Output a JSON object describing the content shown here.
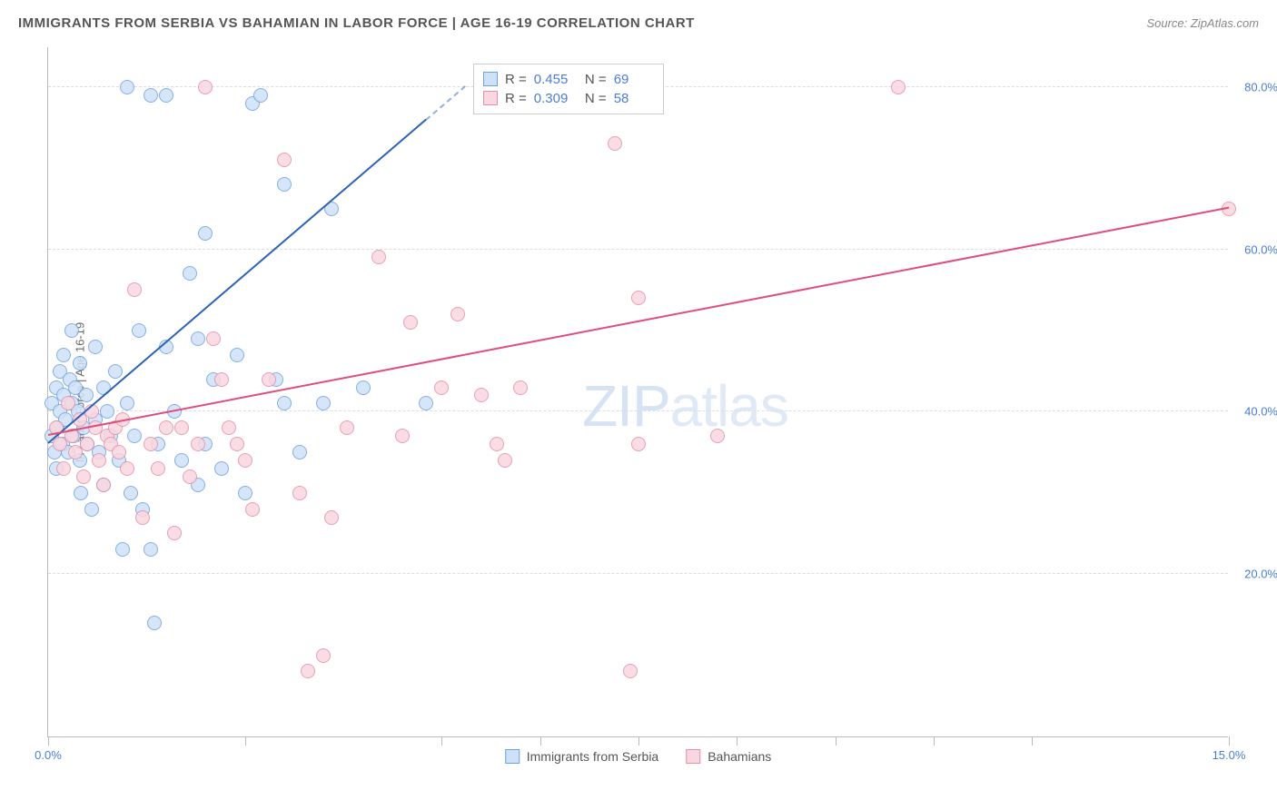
{
  "header": {
    "title": "IMMIGRANTS FROM SERBIA VS BAHAMIAN IN LABOR FORCE | AGE 16-19 CORRELATION CHART",
    "source": "Source: ZipAtlas.com"
  },
  "chart": {
    "type": "scatter",
    "ylabel": "In Labor Force | Age 16-19",
    "xlim": [
      0,
      15
    ],
    "ylim": [
      0,
      85
    ],
    "xticks": [
      0,
      2.5,
      5,
      6.25,
      7.5,
      8.75,
      10,
      11.25,
      12.5,
      15
    ],
    "xtick_labels": {
      "0": "0.0%",
      "15": "15.0%"
    },
    "ygrid": [
      20,
      40,
      60,
      80
    ],
    "ytick_labels": {
      "20": "20.0%",
      "40": "40.0%",
      "60": "60.0%",
      "80": "80.0%"
    },
    "background_color": "#ffffff",
    "grid_color": "#dddddd",
    "axis_color": "#bbbbbb",
    "tick_label_color": "#4a7dd4",
    "point_radius": 8,
    "series": [
      {
        "name": "Immigrants from Serbia",
        "fill": "#cfe1f7",
        "stroke": "#6ea3e2",
        "trend_color": "#2d62b8",
        "R": "0.455",
        "N": "69",
        "trend": {
          "x1": 0,
          "y1": 36,
          "x2": 5.3,
          "y2": 80,
          "dashed_after_x": 4.8
        },
        "points": [
          [
            0.05,
            37
          ],
          [
            0.05,
            41
          ],
          [
            0.08,
            35
          ],
          [
            0.1,
            33
          ],
          [
            0.1,
            43
          ],
          [
            0.12,
            38
          ],
          [
            0.15,
            45
          ],
          [
            0.15,
            40
          ],
          [
            0.18,
            36
          ],
          [
            0.2,
            47
          ],
          [
            0.2,
            42
          ],
          [
            0.22,
            39
          ],
          [
            0.25,
            35
          ],
          [
            0.28,
            44
          ],
          [
            0.3,
            41
          ],
          [
            0.3,
            50
          ],
          [
            0.32,
            37
          ],
          [
            0.35,
            43
          ],
          [
            0.38,
            40
          ],
          [
            0.4,
            46
          ],
          [
            0.4,
            34
          ],
          [
            0.42,
            30
          ],
          [
            0.45,
            38
          ],
          [
            0.48,
            42
          ],
          [
            0.5,
            36
          ],
          [
            0.55,
            28
          ],
          [
            0.6,
            39
          ],
          [
            0.6,
            48
          ],
          [
            0.65,
            35
          ],
          [
            0.7,
            43
          ],
          [
            0.7,
            31
          ],
          [
            0.75,
            40
          ],
          [
            0.8,
            37
          ],
          [
            0.85,
            45
          ],
          [
            0.9,
            34
          ],
          [
            0.95,
            23
          ],
          [
            1.0,
            80
          ],
          [
            1.0,
            41
          ],
          [
            1.05,
            30
          ],
          [
            1.1,
            37
          ],
          [
            1.15,
            50
          ],
          [
            1.2,
            28
          ],
          [
            1.3,
            79
          ],
          [
            1.3,
            23
          ],
          [
            1.35,
            14
          ],
          [
            1.4,
            36
          ],
          [
            1.5,
            79
          ],
          [
            1.5,
            48
          ],
          [
            1.6,
            40
          ],
          [
            1.7,
            34
          ],
          [
            1.8,
            57
          ],
          [
            1.9,
            31
          ],
          [
            1.9,
            49
          ],
          [
            2.0,
            62
          ],
          [
            2.0,
            36
          ],
          [
            2.1,
            44
          ],
          [
            2.2,
            33
          ],
          [
            2.4,
            47
          ],
          [
            2.5,
            30
          ],
          [
            2.6,
            78
          ],
          [
            2.7,
            79
          ],
          [
            2.9,
            44
          ],
          [
            3.0,
            41
          ],
          [
            3.0,
            68
          ],
          [
            3.2,
            35
          ],
          [
            3.5,
            41
          ],
          [
            3.6,
            65
          ],
          [
            4.0,
            43
          ],
          [
            4.8,
            41
          ]
        ]
      },
      {
        "name": "Bahamians",
        "fill": "#f9d7e0",
        "stroke": "#e68fa8",
        "trend_color": "#e04d7a",
        "R": "0.309",
        "N": "58",
        "trend": {
          "x1": 0,
          "y1": 37,
          "x2": 15,
          "y2": 65
        },
        "points": [
          [
            0.1,
            38
          ],
          [
            0.15,
            36
          ],
          [
            0.2,
            33
          ],
          [
            0.25,
            41
          ],
          [
            0.3,
            37
          ],
          [
            0.35,
            35
          ],
          [
            0.4,
            39
          ],
          [
            0.45,
            32
          ],
          [
            0.5,
            36
          ],
          [
            0.55,
            40
          ],
          [
            0.6,
            38
          ],
          [
            0.65,
            34
          ],
          [
            0.7,
            31
          ],
          [
            0.75,
            37
          ],
          [
            0.8,
            36
          ],
          [
            0.85,
            38
          ],
          [
            0.9,
            35
          ],
          [
            0.95,
            39
          ],
          [
            1.0,
            33
          ],
          [
            1.1,
            55
          ],
          [
            1.2,
            27
          ],
          [
            1.3,
            36
          ],
          [
            1.4,
            33
          ],
          [
            1.5,
            38
          ],
          [
            1.6,
            25
          ],
          [
            1.7,
            38
          ],
          [
            1.8,
            32
          ],
          [
            1.9,
            36
          ],
          [
            2.0,
            80
          ],
          [
            2.1,
            49
          ],
          [
            2.2,
            44
          ],
          [
            2.3,
            38
          ],
          [
            2.4,
            36
          ],
          [
            2.5,
            34
          ],
          [
            2.6,
            28
          ],
          [
            2.8,
            44
          ],
          [
            3.0,
            71
          ],
          [
            3.2,
            30
          ],
          [
            3.3,
            8
          ],
          [
            3.5,
            10
          ],
          [
            3.6,
            27
          ],
          [
            3.8,
            38
          ],
          [
            4.2,
            59
          ],
          [
            4.5,
            37
          ],
          [
            4.6,
            51
          ],
          [
            5.0,
            43
          ],
          [
            5.2,
            52
          ],
          [
            5.5,
            42
          ],
          [
            5.7,
            36
          ],
          [
            5.8,
            34
          ],
          [
            6.0,
            43
          ],
          [
            7.2,
            73
          ],
          [
            7.4,
            8
          ],
          [
            7.5,
            54
          ],
          [
            7.5,
            36
          ],
          [
            8.5,
            37
          ],
          [
            10.8,
            80
          ],
          [
            15.0,
            65
          ]
        ]
      }
    ],
    "legend": [
      {
        "label": "Immigrants from Serbia",
        "fill": "#cfe1f7",
        "stroke": "#6ea3e2"
      },
      {
        "label": "Bahamians",
        "fill": "#f9d7e0",
        "stroke": "#e68fa8"
      }
    ],
    "watermark": {
      "bold": "ZIP",
      "thin": "atlas"
    }
  }
}
